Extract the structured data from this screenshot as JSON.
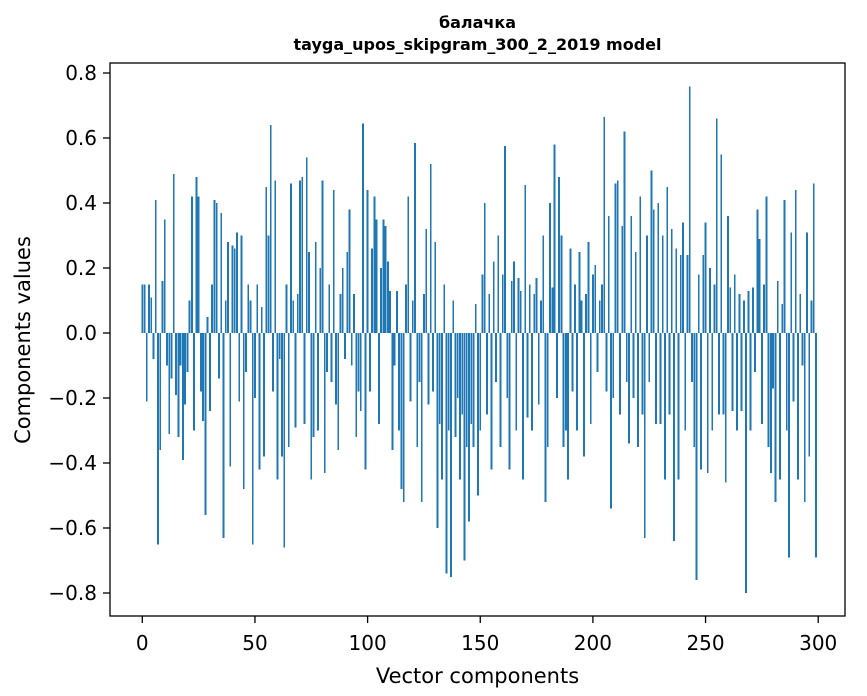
{
  "figure": {
    "title_line1": "балачка",
    "title_line2": "tayga_upos_skipgram_300_2_2019 model",
    "xlabel": "Vector components",
    "ylabel": "Components values"
  },
  "chart_data": {
    "type": "bar",
    "title": "балачка\ntayga_upos_skipgram_300_2_2019 model",
    "xlabel": "Vector components",
    "ylabel": "Components values",
    "legend": "none",
    "grid": false,
    "bar_color": "#1f77b4",
    "axis_color": "#000000",
    "n_components": 300,
    "x_ticks": [
      0,
      50,
      100,
      150,
      200,
      250,
      300
    ],
    "y_ticks": [
      0.8,
      0.6,
      0.4,
      0.2,
      0.0,
      -0.2,
      -0.4,
      -0.6,
      -0.8
    ],
    "xlim": [
      -15.4,
      314.4
    ],
    "ylim": [
      -0.878,
      0.838
    ],
    "values": [
      0.15,
      0.15,
      -0.21,
      0.15,
      0.11,
      -0.08,
      0.41,
      -0.65,
      -0.36,
      0.16,
      0.35,
      -0.1,
      -0.31,
      -0.14,
      0.49,
      -0.19,
      -0.32,
      -0.1,
      -0.39,
      -0.22,
      -0.12,
      0.1,
      0.42,
      -0.3,
      0.48,
      0.42,
      -0.18,
      -0.27,
      -0.56,
      0.05,
      -0.24,
      0.15,
      0.41,
      0.4,
      -0.14,
      0.37,
      -0.63,
      0.1,
      0.28,
      -0.41,
      0.27,
      0.26,
      0.31,
      -0.21,
      0.3,
      -0.48,
      -0.12,
      0.15,
      0.1,
      -0.65,
      -0.2,
      0.15,
      -0.42,
      0.08,
      -0.38,
      0.45,
      0.3,
      0.64,
      -0.18,
      0.47,
      -0.45,
      -0.08,
      -0.38,
      -0.66,
      0.15,
      -0.35,
      0.46,
      0.1,
      -0.29,
      0.12,
      0.47,
      0.48,
      -0.28,
      0.54,
      0.25,
      -0.45,
      -0.32,
      0.28,
      -0.3,
      0.2,
      0.47,
      -0.43,
      -0.12,
      0.15,
      -0.15,
      0.44,
      -0.22,
      -0.36,
      0.12,
      0.2,
      -0.08,
      0.25,
      0.38,
      -0.1,
      0.12,
      -0.32,
      -0.18,
      -0.24,
      0.645,
      -0.42,
      0.44,
      -0.18,
      0.26,
      0.42,
      0.35,
      -0.28,
      0.2,
      0.35,
      0.33,
      0.22,
      0.13,
      -0.36,
      -0.1,
      0.13,
      -0.3,
      -0.48,
      -0.52,
      0.15,
      0.42,
      -0.21,
      0.1,
      0.585,
      -0.35,
      -0.15,
      -0.52,
      0.12,
      0.32,
      -0.22,
      0.52,
      -0.18,
      0.28,
      -0.6,
      -0.28,
      -0.45,
      0.15,
      -0.74,
      -0.3,
      -0.75,
      0.1,
      -0.32,
      -0.2,
      -0.45,
      -0.25,
      -0.7,
      -0.35,
      -0.58,
      -0.28,
      -0.35,
      0.09,
      -0.5,
      -0.3,
      0.18,
      0.4,
      -0.25,
      0.12,
      -0.42,
      0.22,
      -0.15,
      0.3,
      -0.35,
      0.18,
      0.575,
      -0.2,
      -0.42,
      0.16,
      0.22,
      -0.3,
      0.17,
      0.13,
      -0.45,
      0.455,
      -0.26,
      0.15,
      -0.3,
      0.12,
      0.17,
      -0.22,
      0.1,
      0.3,
      -0.52,
      -0.35,
      0.4,
      0.14,
      0.58,
      -0.2,
      0.48,
      0.3,
      -0.35,
      -0.3,
      -0.45,
      0.26,
      -0.18,
      0.15,
      -0.3,
      0.25,
      0.1,
      -0.38,
      0.12,
      0.28,
      -0.28,
      0.18,
      0.21,
      -0.12,
      0.1,
      0.15,
      0.665,
      -0.18,
      0.36,
      -0.54,
      -0.2,
      0.46,
      0.47,
      -0.25,
      0.33,
      0.62,
      -0.15,
      -0.34,
      0.36,
      -0.2,
      0.25,
      -0.35,
      0.42,
      -0.25,
      -0.63,
      0.3,
      -0.15,
      0.5,
      0.38,
      -0.28,
      0.4,
      -0.28,
      0.3,
      -0.45,
      0.45,
      -0.25,
      0.32,
      -0.64,
      0.26,
      -0.45,
      0.24,
      0.34,
      -0.3,
      0.24,
      0.758,
      -0.15,
      -0.35,
      -0.76,
      0.18,
      -0.42,
      0.24,
      0.34,
      -0.43,
      0.2,
      -0.3,
      0.15,
      0.66,
      -0.25,
      0.55,
      -0.25,
      -0.46,
      0.36,
      0.14,
      -0.24,
      0.18,
      -0.3,
      0.12,
      -0.24,
      0.1,
      -0.8,
      0.13,
      -0.3,
      0.14,
      -0.12,
      0.38,
      0.29,
      -0.28,
      0.15,
      0.42,
      -0.35,
      -0.43,
      -0.17,
      -0.52,
      0.16,
      -0.45,
      0.09,
      0.41,
      -0.3,
      -0.69,
      0.31,
      -0.21,
      0.44,
      -0.45,
      0.12,
      -0.1,
      -0.52,
      0.31,
      -0.38,
      0.1,
      0.46,
      -0.69
    ]
  }
}
